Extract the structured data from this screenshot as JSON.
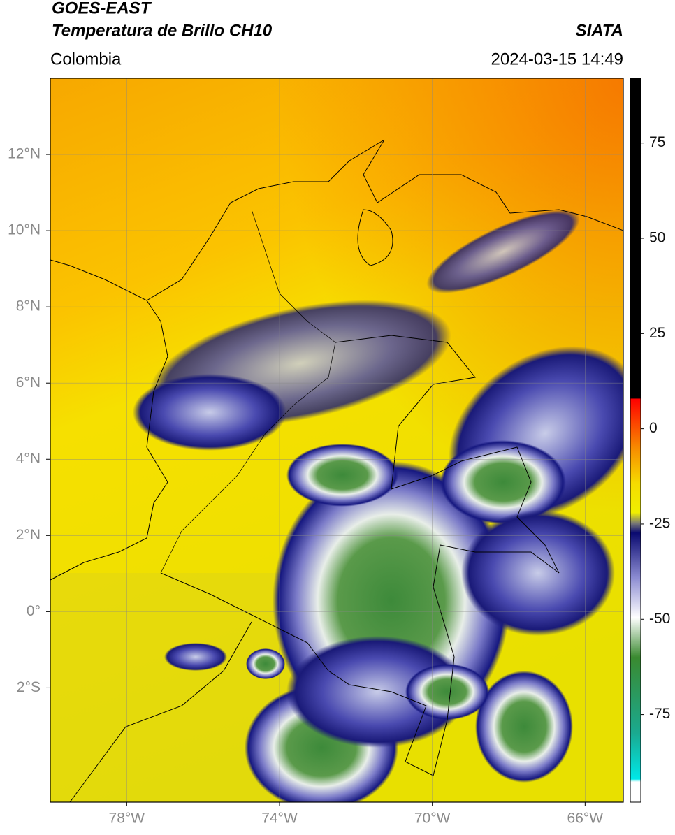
{
  "header": {
    "title": "GOES-EAST",
    "subtitle": "Temperatura de Brillo CH10",
    "source": "SIATA",
    "region": "Colombia",
    "datetime": "2024-03-15 14:49"
  },
  "map": {
    "lon_range": [
      -80,
      -65
    ],
    "lat_range": [
      -5,
      14
    ],
    "lon_ticks": [
      {
        "value": -78,
        "label": "78°W"
      },
      {
        "value": -74,
        "label": "74°W"
      },
      {
        "value": -70,
        "label": "70°W"
      },
      {
        "value": -66,
        "label": "66°W"
      }
    ],
    "lat_ticks": [
      {
        "value": 12,
        "label": "12°N"
      },
      {
        "value": 10,
        "label": "10°N"
      },
      {
        "value": 8,
        "label": "8°N"
      },
      {
        "value": 6,
        "label": "6°N"
      },
      {
        "value": 4,
        "label": "4°N"
      },
      {
        "value": 2,
        "label": "2°N"
      },
      {
        "value": 0,
        "label": "0°"
      },
      {
        "value": -2,
        "label": "2°S"
      }
    ]
  },
  "colorbar": {
    "range": [
      -98,
      92
    ],
    "ticks": [
      75,
      50,
      25,
      0,
      -25,
      -50,
      -75
    ]
  }
}
